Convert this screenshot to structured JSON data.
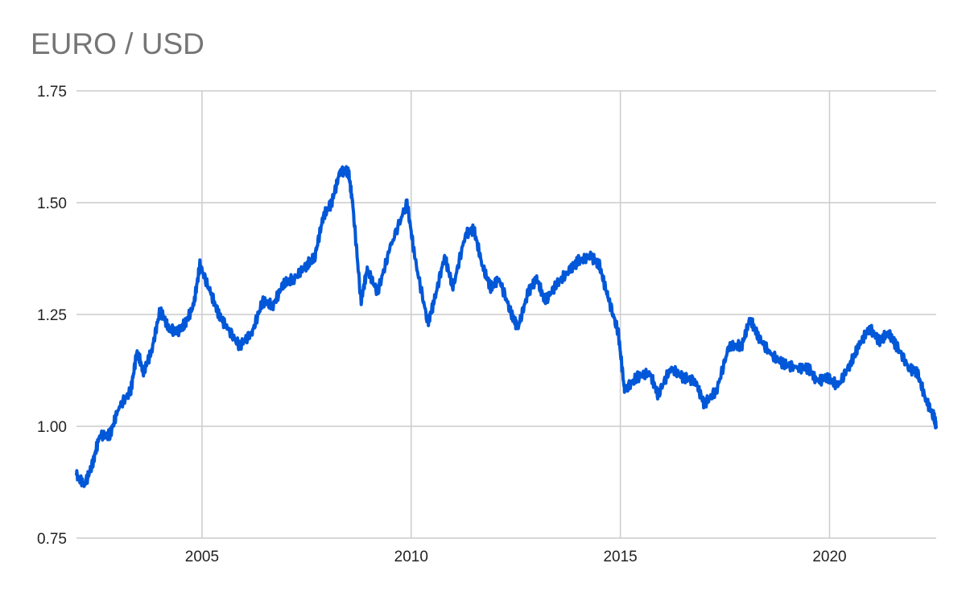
{
  "chart_data": {
    "type": "line",
    "title": "EURO / USD",
    "xlabel": "",
    "ylabel": "",
    "xlim": [
      2002.0,
      2022.55
    ],
    "ylim": [
      0.75,
      1.75
    ],
    "grid": true,
    "legend": "none",
    "x_ticks": [
      "2005",
      "2010",
      "2015",
      "2020"
    ],
    "y_ticks": [
      "0.75",
      "1.00",
      "1.25",
      "1.50",
      "1.75"
    ],
    "color": "#0057d8",
    "series": [
      {
        "x": [
          2002.0,
          2002.2,
          2002.4,
          2002.55,
          2002.8,
          2003.0,
          2003.3,
          2003.45,
          2003.6,
          2003.8,
          2004.0,
          2004.2,
          2004.4,
          2004.6,
          2004.8,
          2004.95,
          2005.2,
          2005.4,
          2005.6,
          2005.9,
          2006.2,
          2006.45,
          2006.7,
          2006.95,
          2007.2,
          2007.5,
          2007.7,
          2007.9,
          2008.1,
          2008.3,
          2008.5,
          2008.6,
          2008.8,
          2008.95,
          2009.2,
          2009.5,
          2009.9,
          2010.1,
          2010.4,
          2010.55,
          2010.8,
          2011.0,
          2011.3,
          2011.5,
          2011.7,
          2011.9,
          2012.1,
          2012.4,
          2012.55,
          2012.8,
          2013.0,
          2013.2,
          2013.5,
          2013.8,
          2014.0,
          2014.3,
          2014.5,
          2014.7,
          2014.95,
          2015.1,
          2015.4,
          2015.7,
          2015.9,
          2016.2,
          2016.5,
          2016.8,
          2017.0,
          2017.3,
          2017.6,
          2017.9,
          2018.1,
          2018.3,
          2018.6,
          2018.9,
          2019.2,
          2019.5,
          2019.7,
          2019.95,
          2020.2,
          2020.5,
          2020.7,
          2020.95,
          2021.2,
          2021.4,
          2021.6,
          2021.9,
          2022.1,
          2022.3,
          2022.5,
          2022.55
        ],
        "values": [
          0.89,
          0.87,
          0.92,
          0.98,
          0.98,
          1.04,
          1.08,
          1.17,
          1.12,
          1.17,
          1.26,
          1.22,
          1.21,
          1.23,
          1.27,
          1.36,
          1.3,
          1.25,
          1.22,
          1.18,
          1.21,
          1.28,
          1.27,
          1.32,
          1.33,
          1.36,
          1.38,
          1.47,
          1.5,
          1.57,
          1.57,
          1.5,
          1.28,
          1.35,
          1.3,
          1.4,
          1.5,
          1.37,
          1.23,
          1.28,
          1.38,
          1.31,
          1.43,
          1.44,
          1.36,
          1.31,
          1.33,
          1.25,
          1.22,
          1.3,
          1.33,
          1.28,
          1.32,
          1.35,
          1.37,
          1.38,
          1.36,
          1.29,
          1.21,
          1.08,
          1.11,
          1.12,
          1.07,
          1.13,
          1.11,
          1.1,
          1.05,
          1.08,
          1.18,
          1.18,
          1.24,
          1.2,
          1.16,
          1.14,
          1.13,
          1.13,
          1.1,
          1.11,
          1.09,
          1.14,
          1.18,
          1.22,
          1.19,
          1.21,
          1.18,
          1.13,
          1.12,
          1.06,
          1.02,
          1.0
        ]
      }
    ]
  }
}
